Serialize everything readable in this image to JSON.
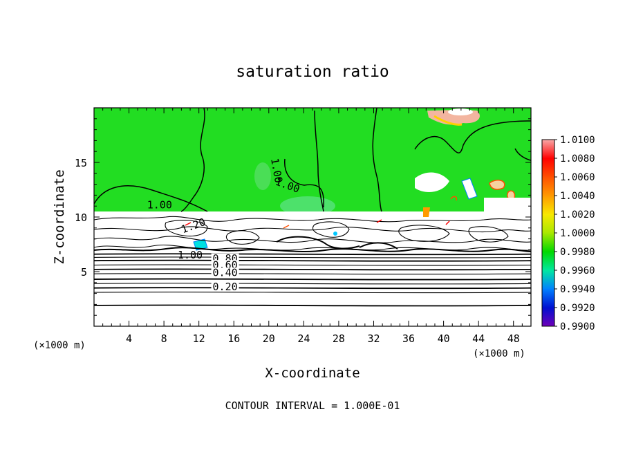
{
  "chart_data": {
    "type": "heatmap",
    "title": "saturation ratio",
    "xlabel": "X-coordinate",
    "ylabel": "Z-coordinate",
    "x_units_left": "(×1000 m)",
    "x_units_right": "(×1000 m)",
    "footer": "CONTOUR INTERVAL = 1.000E-01",
    "xlim": [
      0,
      50
    ],
    "ylim": [
      0,
      20
    ],
    "x_ticks": [
      4,
      8,
      12,
      16,
      20,
      24,
      28,
      32,
      36,
      40,
      44,
      48
    ],
    "y_ticks": [
      5,
      10,
      15
    ],
    "colorbar": {
      "range": [
        0.99,
        1.01
      ],
      "labels": [
        "1.0100",
        "1.0080",
        "1.0060",
        "1.0040",
        "1.0020",
        "1.0000",
        "0.9980",
        "0.9960",
        "0.9940",
        "0.9920",
        "0.9900"
      ],
      "colors": [
        "#f8a8a8",
        "#ff0000",
        "#ff5000",
        "#ff9a00",
        "#f8e800",
        "#a8e800",
        "#00d800",
        "#00e8a0",
        "#0080ff",
        "#0010d0",
        "#7000b8"
      ]
    },
    "contour_labels": [
      {
        "text": "1.00",
        "x": 20.5,
        "z": 14.2
      },
      {
        "text": "1.00",
        "x": 22.0,
        "z": 12.6
      },
      {
        "text": "1.00",
        "x": 7.5,
        "z": 10.8
      },
      {
        "text": "1.20",
        "x": 11.5,
        "z": 8.9
      },
      {
        "text": "1.00",
        "x": 11.0,
        "z": 6.2
      },
      {
        "text": "0.80",
        "x": 15.0,
        "z": 5.9
      },
      {
        "text": "0.60",
        "x": 15.0,
        "z": 5.3
      },
      {
        "text": "0.40",
        "x": 15.0,
        "z": 4.6
      },
      {
        "text": "0.20",
        "x": 15.0,
        "z": 3.3
      }
    ],
    "horizontal_contours_z": [
      1.9,
      3.1,
      3.5,
      3.9,
      4.3,
      4.8,
      5.2,
      5.6,
      6.0,
      6.3,
      6.6
    ]
  }
}
